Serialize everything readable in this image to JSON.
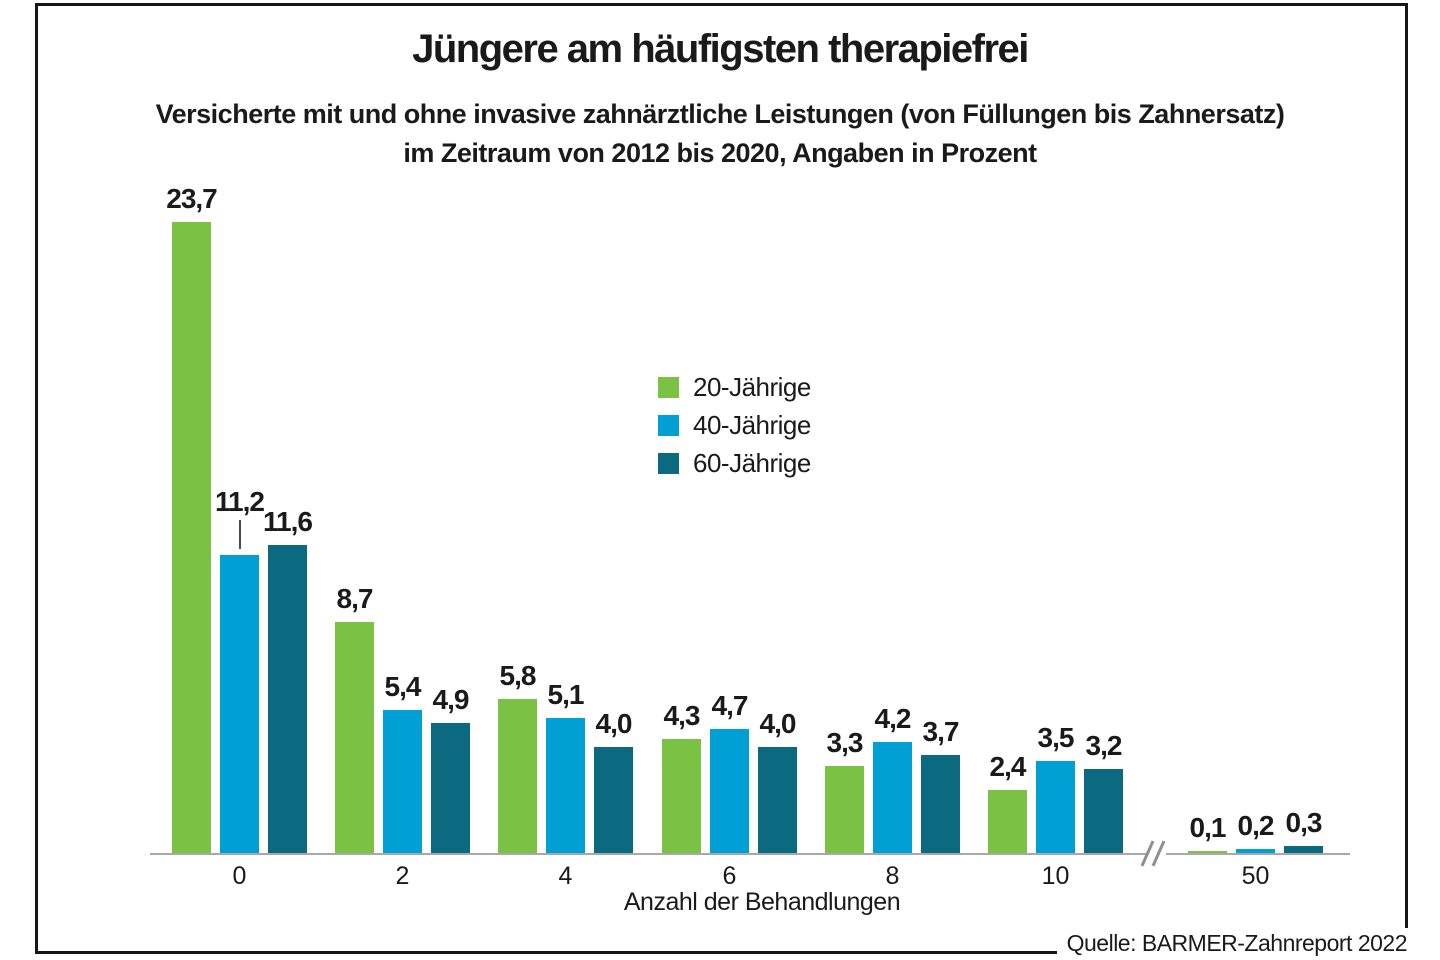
{
  "chart_data": {
    "type": "bar",
    "title": "Jüngere am häufigsten therapiefrei",
    "subtitle_lines": [
      "Versicherte mit und ohne invasive zahnärztliche Leistungen (von Füllungen bis Zahnersatz)",
      "im Zeitraum von 2012 bis 2020, Angaben in Prozent"
    ],
    "categories": [
      "0",
      "2",
      "4",
      "6",
      "8",
      "10",
      "50"
    ],
    "series": [
      {
        "name": "20-Jährige",
        "color": "#7bc143",
        "values": [
          23.7,
          8.7,
          5.8,
          4.3,
          3.3,
          2.4,
          0.1
        ]
      },
      {
        "name": "40-Jährige",
        "color": "#009fd4",
        "values": [
          11.2,
          5.4,
          5.1,
          4.7,
          4.2,
          3.5,
          0.2
        ]
      },
      {
        "name": "60-Jährige",
        "color": "#0c6a80",
        "values": [
          11.6,
          4.9,
          4.0,
          4.0,
          3.7,
          3.2,
          0.3
        ]
      }
    ],
    "xlabel": "Anzahl der Behandlungen",
    "ylabel": "",
    "ylim": [
      0,
      25
    ],
    "grid": false,
    "legend_position": "inside-center-top",
    "decimal_separator": ",",
    "value_labels_shown": true,
    "axis_break": {
      "between": [
        "10",
        "50"
      ]
    },
    "label_callout": {
      "series_index": 1,
      "category_index": 0
    }
  },
  "source": {
    "credit": "Quelle: BARMER-Zahnreport 2022"
  },
  "colors": {
    "frame": "#161616",
    "axis": "#a8a8a8",
    "text": "#1a1a1a",
    "background": "#ffffff"
  }
}
